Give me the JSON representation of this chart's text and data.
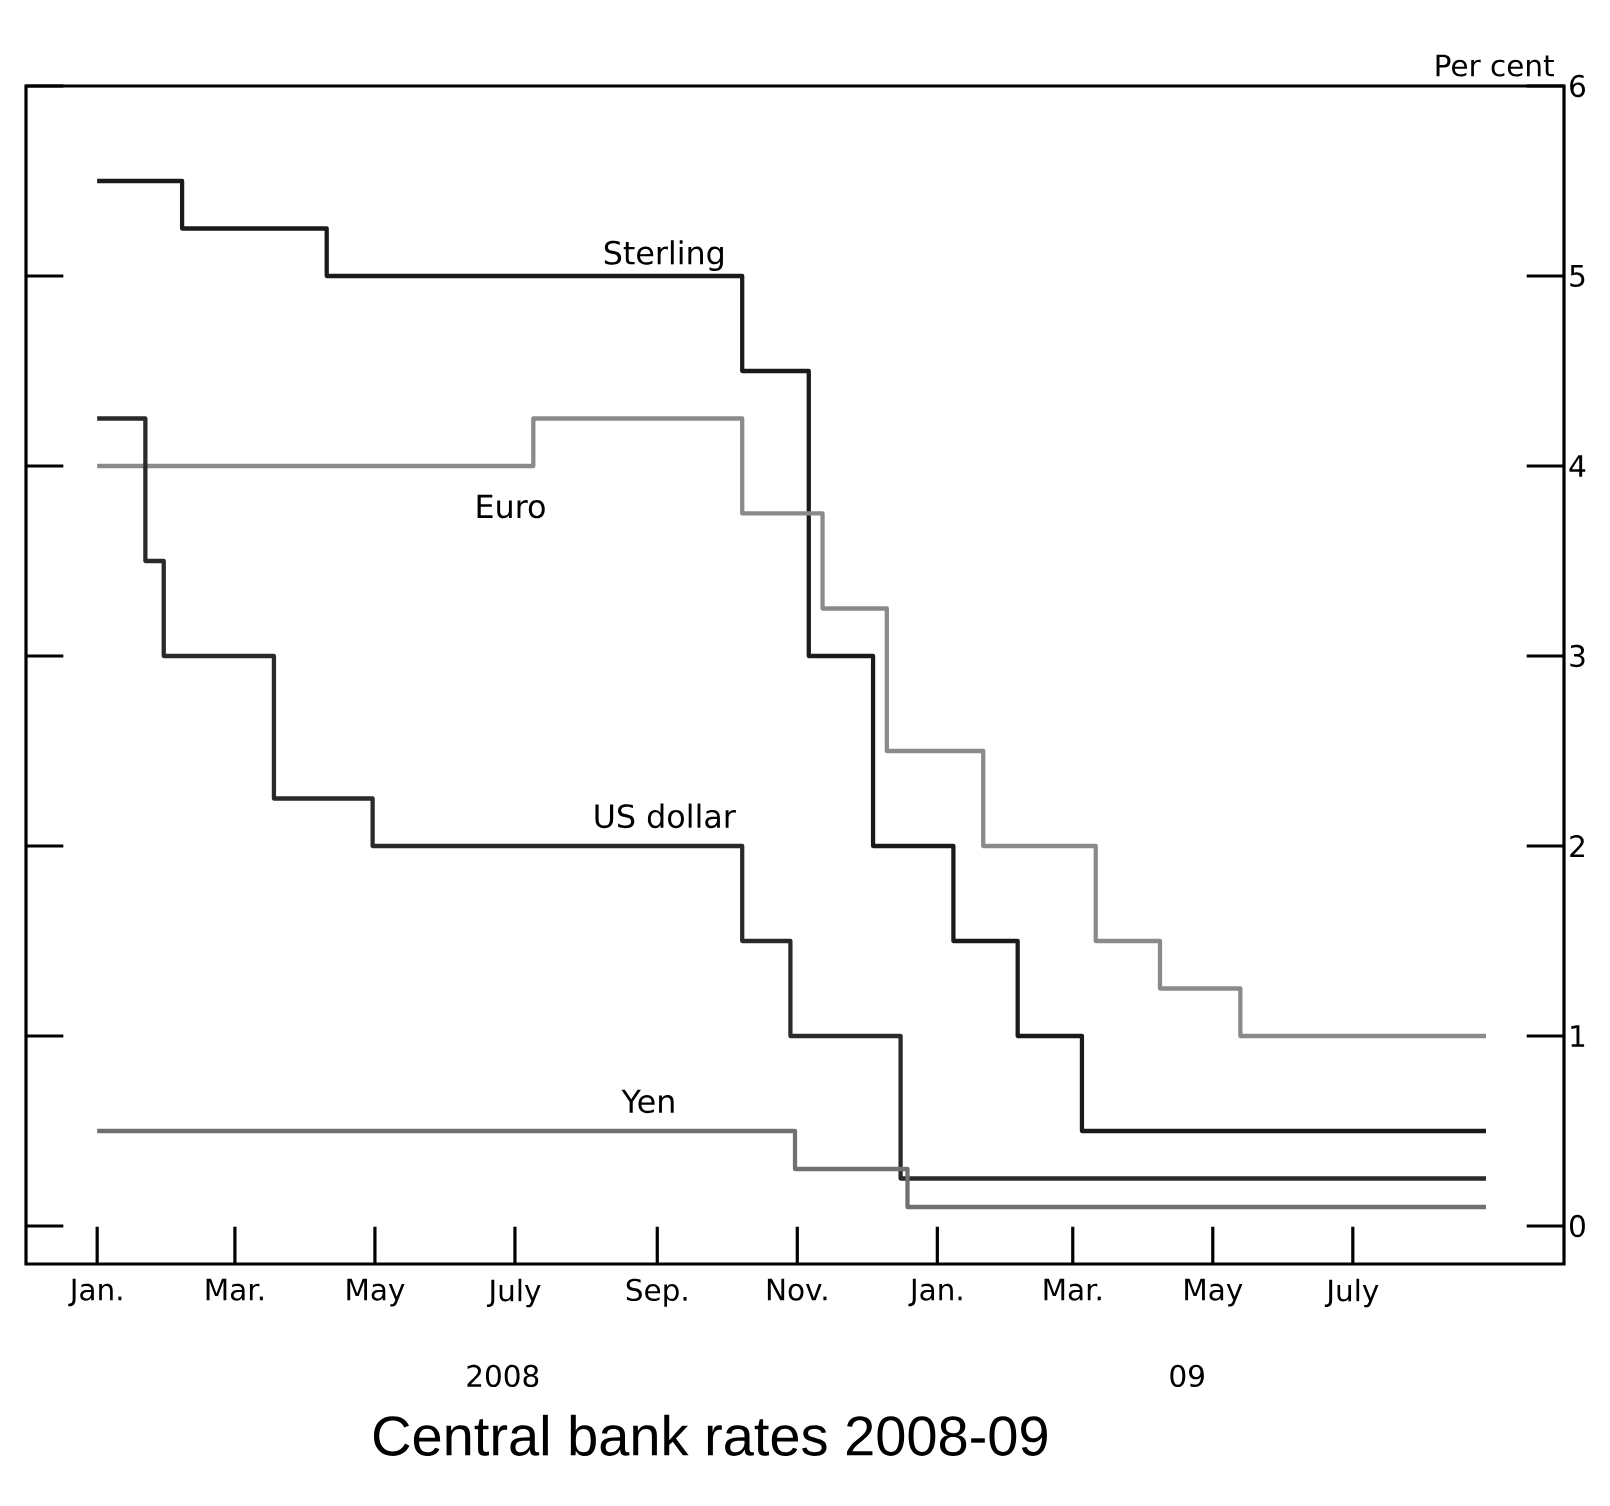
{
  "chart_data": {
    "type": "step",
    "title": "Central bank rates 2008-09",
    "ylabel": "Per cent",
    "xlim": [
      "2007-12-01",
      "2009-10-01"
    ],
    "xticks": [
      {
        "value": "2008-01-01",
        "label": "Jan."
      },
      {
        "value": "2008-03-01",
        "label": "Mar."
      },
      {
        "value": "2008-05-01",
        "label": "May"
      },
      {
        "value": "2008-07-01",
        "label": "July"
      },
      {
        "value": "2008-09-01",
        "label": "Sep."
      },
      {
        "value": "2008-11-01",
        "label": "Nov."
      },
      {
        "value": "2009-01-01",
        "label": "Jan."
      },
      {
        "value": "2009-03-01",
        "label": "Mar."
      },
      {
        "value": "2009-05-01",
        "label": "May"
      },
      {
        "value": "2009-07-01",
        "label": "July"
      }
    ],
    "ylim": [
      -0.2,
      6
    ],
    "yticks": [
      0,
      1,
      2,
      3,
      4,
      5,
      6
    ],
    "annotations": [
      "2008",
      "09"
    ],
    "series": [
      {
        "name": "Sterling",
        "color": "#1a1a1a",
        "x": [
          "2008-01-01",
          "2008-02-07",
          "2008-04-10",
          "2008-10-08",
          "2008-11-06",
          "2008-12-04",
          "2009-01-08",
          "2009-02-05",
          "2009-03-05",
          "2009-08-28"
        ],
        "values": [
          5.5,
          5.25,
          5.0,
          4.5,
          3.0,
          2.0,
          1.5,
          1.0,
          0.5,
          0.5
        ]
      },
      {
        "name": "Euro",
        "color": "#8a8a8a",
        "x": [
          "2008-01-01",
          "2008-07-09",
          "2008-10-08",
          "2008-11-12",
          "2008-12-10",
          "2009-01-21",
          "2009-03-11",
          "2009-04-08",
          "2009-05-13",
          "2009-08-28"
        ],
        "values": [
          4.0,
          4.25,
          3.75,
          3.25,
          2.5,
          2.0,
          1.5,
          1.25,
          1.0,
          1.0
        ]
      },
      {
        "name": "US dollar",
        "color": "#2a2a2a",
        "x": [
          "2008-01-01",
          "2008-01-22",
          "2008-01-30",
          "2008-03-18",
          "2008-04-30",
          "2008-10-08",
          "2008-10-29",
          "2008-12-16",
          "2009-08-28"
        ],
        "values": [
          4.25,
          3.5,
          3.0,
          2.25,
          2.0,
          1.5,
          1.0,
          0.25,
          0.25
        ]
      },
      {
        "name": "Yen",
        "color": "#707070",
        "x": [
          "2008-01-01",
          "2008-10-31",
          "2008-12-19",
          "2009-08-28"
        ],
        "values": [
          0.5,
          0.3,
          0.1,
          0.1
        ]
      }
    ]
  }
}
